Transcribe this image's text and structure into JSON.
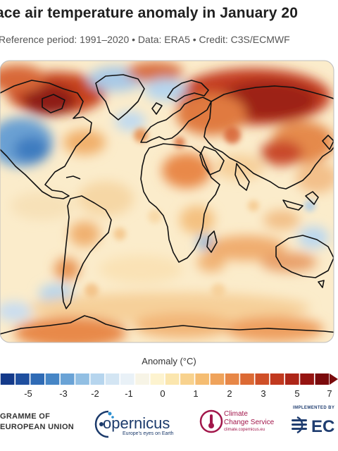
{
  "header": {
    "title": "ace air temperature anomaly in January 20",
    "subtitle": "Reference period: 1991–2020 • Data: ERA5 • Credit: C3S/ECMWF"
  },
  "legend": {
    "title": "Anomaly (°C)",
    "ticks": [
      "-5",
      "-3",
      "-2",
      "-1",
      "0",
      "1",
      "2",
      "3",
      "5",
      "7"
    ],
    "colors": [
      "#143a8a",
      "#1f4f9f",
      "#2f6bb5",
      "#4686c6",
      "#6aa3d6",
      "#92bfe3",
      "#b6d5ee",
      "#d3e5f3",
      "#e9f1f7",
      "#f7f4e6",
      "#fdf3cf",
      "#fbe6ae",
      "#f8d28e",
      "#f5bd72",
      "#efa35b",
      "#e78747",
      "#dc6a34",
      "#cf4f27",
      "#c1391f",
      "#ad2518",
      "#951411",
      "#7a0a0c"
    ]
  },
  "footer": {
    "eu_line1": "GRAMME OF",
    "eu_line2": "EUROPEAN UNION",
    "copernicus_name": "opernicus",
    "copernicus_tagline": "Europe's eyes on Earth",
    "c3s_line1": "Climate",
    "c3s_line2": "Change Service",
    "c3s_url": "climate.copernicus.eu",
    "ecmwf_implemented": "IMPLEMENTED BY",
    "ecmwf_name": "EC"
  },
  "colors": {
    "map_background": "#fbeccb",
    "warm_strong": "#b8321f",
    "cold": "#4b8ccb",
    "coastline": "#111111"
  }
}
